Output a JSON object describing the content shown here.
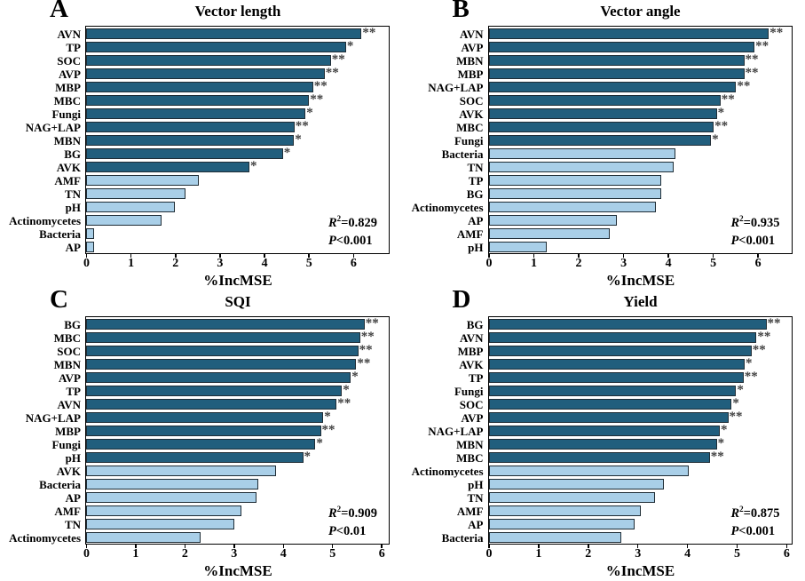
{
  "colors": {
    "dark_bar": "#215E7D",
    "light_bar": "#A9CFE8",
    "bar_border": "#1F2D36",
    "significance": "#3F3F3F"
  },
  "chart_data": [
    {
      "type": "bar",
      "orientation": "horizontal",
      "panel_label": "A",
      "title": "Vector length",
      "xlabel": "%IncMSE",
      "xlim": [
        0,
        6.8
      ],
      "xticks": [
        0,
        1,
        2,
        3,
        4,
        5,
        6
      ],
      "xtick_labels": [
        "0",
        "1",
        "2",
        "3",
        "4",
        "5",
        "6"
      ],
      "categories": [
        "AVN",
        "TP",
        "SOC",
        "AVP",
        "MBP",
        "MBC",
        "Fungi",
        "NAG+LAP",
        "MBN",
        "BG",
        "AVK",
        "AMF",
        "TN",
        "pH",
        "Actinomycetes",
        "Bacteria",
        "AP"
      ],
      "values": [
        6.19,
        5.84,
        5.5,
        5.36,
        5.1,
        5.01,
        4.93,
        4.68,
        4.67,
        4.42,
        3.67,
        2.53,
        2.23,
        2.0,
        1.7,
        0.18,
        0.17
      ],
      "significance": [
        "**",
        "*",
        "**",
        "**",
        "**",
        "**",
        "*",
        "**",
        "*",
        "*",
        "*",
        "",
        "",
        "",
        "",
        "",
        ""
      ],
      "color_group": [
        "dark",
        "dark",
        "dark",
        "dark",
        "dark",
        "dark",
        "dark",
        "dark",
        "dark",
        "dark",
        "dark",
        "light",
        "light",
        "light",
        "light",
        "light",
        "light"
      ],
      "stats": {
        "r2_var": "R",
        "r2_sup": "2",
        "r2_rest": "=0.829",
        "p_var": "P",
        "p_rest": "<0.001"
      }
    },
    {
      "type": "bar",
      "orientation": "horizontal",
      "panel_label": "B",
      "title": "Vector angle",
      "xlabel": "%IncMSE",
      "xlim": [
        0,
        6.75
      ],
      "xticks": [
        0,
        1,
        2,
        3,
        4,
        5,
        6
      ],
      "xtick_labels": [
        "0",
        "1",
        "2",
        "3",
        "4",
        "5",
        "6"
      ],
      "categories": [
        "AVN",
        "AVP",
        "MBN",
        "MBP",
        "NAG+LAP",
        "SOC",
        "AVK",
        "MBC",
        "Fungi",
        "Bacteria",
        "TN",
        "TP",
        "BG",
        "Actinomycetes",
        "AP",
        "AMF",
        "pH"
      ],
      "values": [
        6.25,
        5.93,
        5.7,
        5.7,
        5.52,
        5.17,
        5.09,
        5.02,
        4.96,
        4.17,
        4.12,
        3.85,
        3.85,
        3.74,
        2.85,
        2.71,
        1.29
      ],
      "significance": [
        "**",
        "**",
        "**",
        "**",
        "**",
        "**",
        "*",
        "**",
        "*",
        "",
        "",
        "",
        "",
        "",
        "",
        "",
        ""
      ],
      "color_group": [
        "dark",
        "dark",
        "dark",
        "dark",
        "dark",
        "dark",
        "dark",
        "dark",
        "dark",
        "light",
        "light",
        "light",
        "light",
        "light",
        "light",
        "light",
        "light"
      ],
      "stats": {
        "r2_var": "R",
        "r2_sup": "2",
        "r2_rest": "=0.935",
        "p_var": "P",
        "p_rest": "<0.001"
      }
    },
    {
      "type": "bar",
      "orientation": "horizontal",
      "panel_label": "C",
      "title": "SQI",
      "xlabel": "%IncMSE",
      "xlim": [
        0,
        6.15
      ],
      "xticks": [
        0,
        1,
        2,
        3,
        4,
        5,
        6
      ],
      "xtick_labels": [
        "0",
        "1",
        "2",
        "3",
        "4",
        "5",
        "6"
      ],
      "categories": [
        "BG",
        "MBC",
        "SOC",
        "MBN",
        "AVP",
        "TP",
        "AVN",
        "NAG+LAP",
        "MBP",
        "Fungi",
        "pH",
        "AVK",
        "Bacteria",
        "AP",
        "AMF",
        "TN",
        "Actinomycetes"
      ],
      "values": [
        5.66,
        5.57,
        5.53,
        5.49,
        5.38,
        5.2,
        5.09,
        4.82,
        4.77,
        4.66,
        4.41,
        3.85,
        3.5,
        3.46,
        3.15,
        3.01,
        2.33
      ],
      "significance": [
        "**",
        "**",
        "**",
        "**",
        "*",
        "*",
        "**",
        "*",
        "**",
        "*",
        "*",
        "",
        "",
        "",
        "",
        "",
        ""
      ],
      "color_group": [
        "dark",
        "dark",
        "dark",
        "dark",
        "dark",
        "dark",
        "dark",
        "dark",
        "dark",
        "dark",
        "dark",
        "light",
        "light",
        "light",
        "light",
        "light",
        "light"
      ],
      "stats": {
        "r2_var": "R",
        "r2_sup": "2",
        "r2_rest": "=0.909",
        "p_var": "P",
        "p_rest": "<0.01"
      }
    },
    {
      "type": "bar",
      "orientation": "horizontal",
      "panel_label": "D",
      "title": "Yield",
      "xlabel": "%IncMSE",
      "xlim": [
        0,
        6.1
      ],
      "xticks": [
        0,
        1,
        2,
        3,
        4,
        5,
        6
      ],
      "xtick_labels": [
        "0",
        "1",
        "2",
        "3",
        "4",
        "5",
        "6"
      ],
      "categories": [
        "BG",
        "AVN",
        "MBP",
        "AVK",
        "TP",
        "Fungi",
        "SOC",
        "AVP",
        "NAG+LAP",
        "MBN",
        "MBC",
        "Actinomycetes",
        "pH",
        "TN",
        "AMF",
        "AP",
        "Bacteria"
      ],
      "values": [
        5.6,
        5.4,
        5.3,
        5.16,
        5.14,
        4.99,
        4.9,
        4.83,
        4.66,
        4.6,
        4.46,
        4.03,
        3.53,
        3.35,
        3.06,
        2.94,
        2.68
      ],
      "significance": [
        "**",
        "**",
        "**",
        "*",
        "**",
        "*",
        "*",
        "**",
        "*",
        "*",
        "**",
        "",
        "",
        "",
        "",
        "",
        ""
      ],
      "color_group": [
        "dark",
        "dark",
        "dark",
        "dark",
        "dark",
        "dark",
        "dark",
        "dark",
        "dark",
        "dark",
        "dark",
        "light",
        "light",
        "light",
        "light",
        "light",
        "light"
      ],
      "stats": {
        "r2_var": "R",
        "r2_sup": "2",
        "r2_rest": "=0.875",
        "p_var": "P",
        "p_rest": "<0.001"
      }
    }
  ]
}
